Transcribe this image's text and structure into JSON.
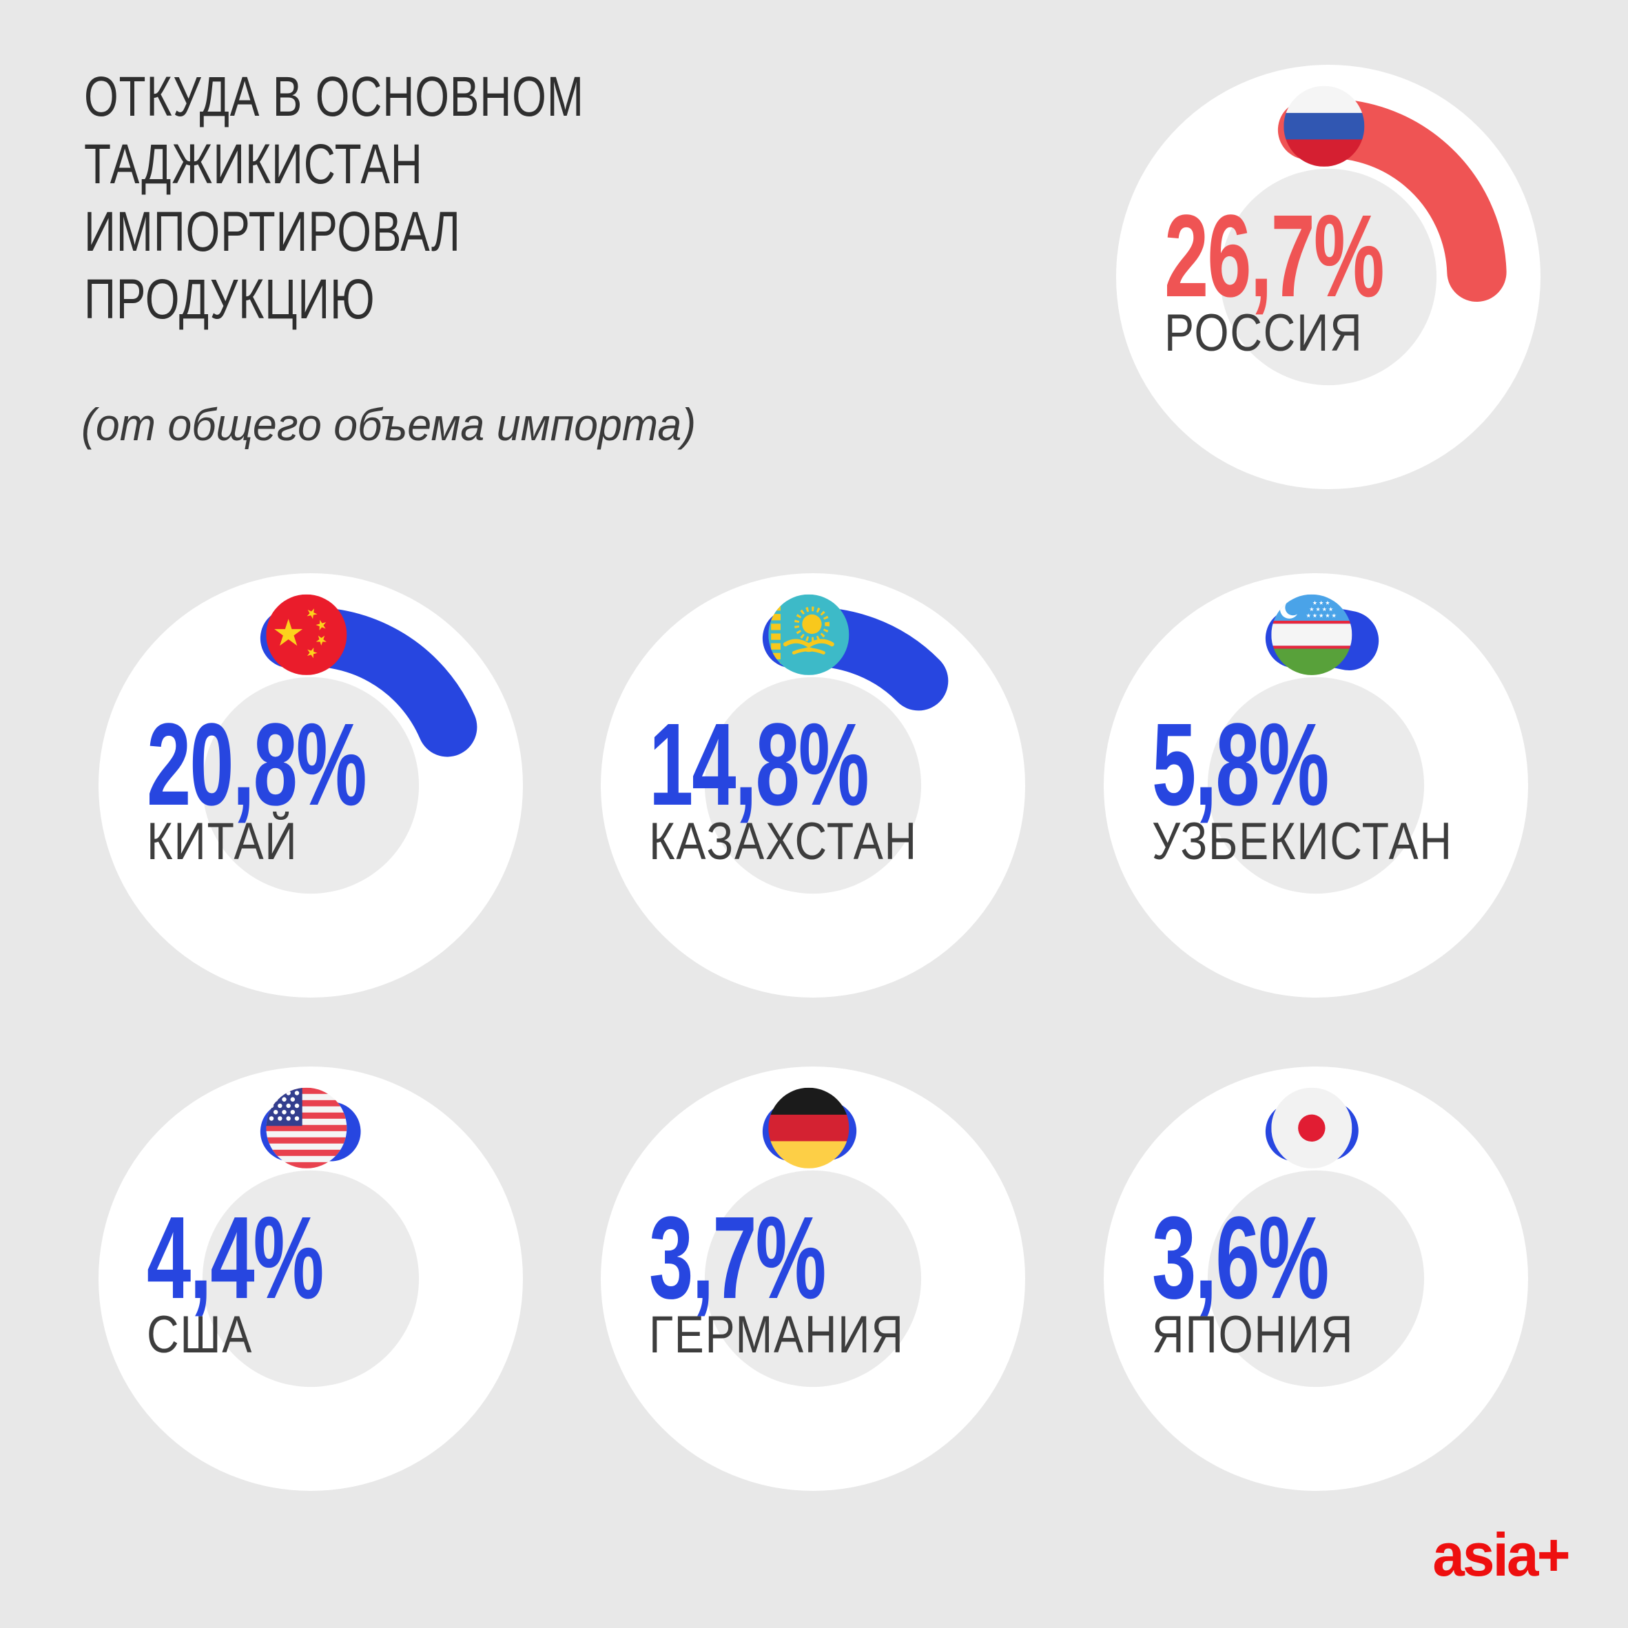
{
  "header": {
    "title": "ОТКУДА В ОСНОВНОМ\nТАДЖИКИСТАН\nИМПОРТИРОВАЛ\nПРОДУКЦИЮ",
    "subtitle": "(от общего объема импорта)"
  },
  "footer": {
    "logo": "asia+",
    "logo_color": "#ee0f0f"
  },
  "colors": {
    "background": "#e8e8e8",
    "card_circle": "#ffffff",
    "donut_hole": "#ebebeb",
    "accent_blue": "#2746e0",
    "accent_red": "#ef5454",
    "title_text": "#2e2e2e",
    "label_text": "#3d3d3d"
  },
  "chart_data": {
    "type": "donut",
    "title": "Откуда в основном Таджикистан импортировал продукцию",
    "subtitle": "(от общего объема импорта)",
    "unit": "%",
    "legend_position": "none",
    "categories": [
      "РОССИЯ",
      "КИТАЙ",
      "КАЗАХСТАН",
      "УЗБЕКИСТАН",
      "США",
      "ГЕРМАНИЯ",
      "ЯПОНИЯ"
    ],
    "values": [
      26.7,
      20.8,
      14.8,
      5.8,
      4.4,
      3.7,
      3.6
    ],
    "display_values": [
      "26,7%",
      "20,8%",
      "14,8%",
      "5,8%",
      "4,4%",
      "3,7%",
      "3,6%"
    ],
    "flags": [
      "russia",
      "china",
      "kazakhstan",
      "uzbekistan",
      "usa",
      "germany",
      "japan"
    ],
    "arc_colors": [
      "#ef5454",
      "#2746e0",
      "#2746e0",
      "#2746e0",
      "#2746e0",
      "#2746e0",
      "#2746e0"
    ]
  }
}
